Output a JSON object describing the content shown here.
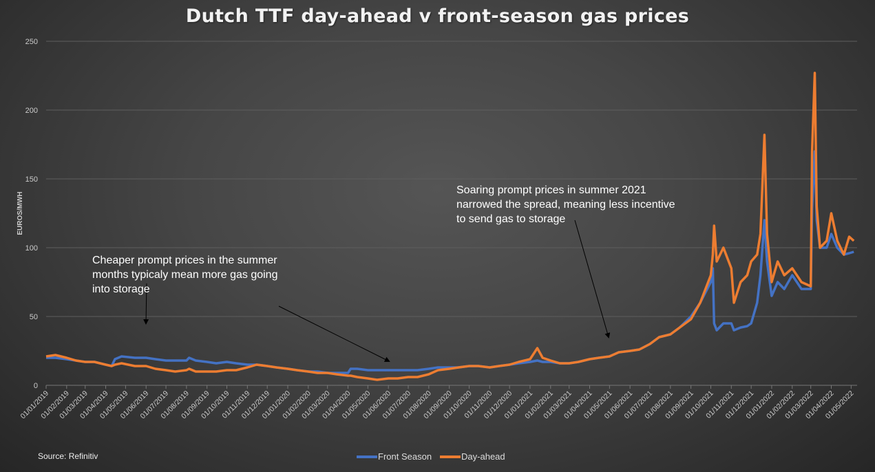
{
  "title": "Dutch TTF day-ahead v front-season gas prices",
  "source": "Source: Refinitiv",
  "annotations": [
    {
      "lines": [
        "Cheaper prompt prices in the summer",
        "months typicaly mean more gas going",
        "into storage"
      ]
    },
    {
      "lines": [
        "Soaring prompt prices in summer 2021",
        "narrowed the spread, meaning less incentive",
        "to send gas to storage"
      ]
    }
  ],
  "chart_data": {
    "type": "line",
    "title": "Dutch TTF day-ahead v front-season gas prices",
    "xlabel": "",
    "ylabel": "EUROS/MWH",
    "ylim": [
      0,
      250
    ],
    "yticks": [
      0,
      50,
      100,
      150,
      200,
      250
    ],
    "xlim": [
      "2019-01-01",
      "2022-05-10"
    ],
    "xtick_labels": [
      "01/01/2019",
      "01/02/2019",
      "01/03/2019",
      "01/04/2019",
      "01/05/2019",
      "01/06/2019",
      "01/07/2019",
      "01/08/2019",
      "01/09/2019",
      "01/10/2019",
      "01/11/2019",
      "01/12/2019",
      "01/01/2020",
      "01/02/2020",
      "01/03/2020",
      "01/04/2020",
      "01/05/2020",
      "01/06/2020",
      "01/07/2020",
      "01/08/2020",
      "01/09/2020",
      "01/10/2020",
      "01/11/2020",
      "01/12/2020",
      "01/01/2021",
      "01/02/2021",
      "01/03/2021",
      "01/04/2021",
      "01/05/2021",
      "01/06/2021",
      "01/07/2021",
      "01/08/2021",
      "01/09/2021",
      "01/10/2021",
      "01/11/2021",
      "01/12/2021",
      "01/01/2022",
      "01/02/2022",
      "01/03/2022",
      "01/04/2022",
      "01/05/2022"
    ],
    "grid": true,
    "legend": "bottom",
    "x": [
      "2019-01-01",
      "2019-01-15",
      "2019-02-01",
      "2019-02-15",
      "2019-03-01",
      "2019-03-15",
      "2019-04-01",
      "2019-04-10",
      "2019-04-15",
      "2019-04-25",
      "2019-05-15",
      "2019-06-01",
      "2019-06-15",
      "2019-07-01",
      "2019-07-15",
      "2019-08-01",
      "2019-08-05",
      "2019-08-15",
      "2019-09-01",
      "2019-09-15",
      "2019-10-01",
      "2019-10-15",
      "2019-11-01",
      "2019-11-15",
      "2019-12-01",
      "2019-12-15",
      "2020-01-01",
      "2020-01-15",
      "2020-02-01",
      "2020-02-15",
      "2020-03-01",
      "2020-03-15",
      "2020-04-01",
      "2020-04-05",
      "2020-04-15",
      "2020-05-01",
      "2020-05-15",
      "2020-06-01",
      "2020-06-15",
      "2020-07-01",
      "2020-07-15",
      "2020-08-01",
      "2020-08-15",
      "2020-09-01",
      "2020-09-15",
      "2020-10-01",
      "2020-10-15",
      "2020-11-01",
      "2020-11-15",
      "2020-12-01",
      "2020-12-15",
      "2021-01-01",
      "2021-01-12",
      "2021-01-20",
      "2021-02-01",
      "2021-02-15",
      "2021-03-01",
      "2021-03-15",
      "2021-04-01",
      "2021-04-15",
      "2021-05-01",
      "2021-05-15",
      "2021-06-01",
      "2021-06-15",
      "2021-07-01",
      "2021-07-15",
      "2021-08-01",
      "2021-08-15",
      "2021-09-01",
      "2021-09-15",
      "2021-10-01",
      "2021-10-04",
      "2021-10-06",
      "2021-10-10",
      "2021-10-20",
      "2021-11-01",
      "2021-11-05",
      "2021-11-15",
      "2021-11-25",
      "2021-12-01",
      "2021-12-10",
      "2021-12-15",
      "2021-12-21",
      "2021-12-25",
      "2022-01-01",
      "2022-01-10",
      "2022-01-20",
      "2022-02-01",
      "2022-02-15",
      "2022-03-01",
      "2022-03-03",
      "2022-03-07",
      "2022-03-10",
      "2022-03-15",
      "2022-03-25",
      "2022-04-01",
      "2022-04-10",
      "2022-04-20",
      "2022-04-28",
      "2022-05-05"
    ],
    "series": [
      {
        "name": "Front Season",
        "color": "#4472c4",
        "values": [
          20,
          20,
          19,
          18,
          17,
          17,
          15,
          14,
          19,
          21,
          20,
          20,
          19,
          18,
          18,
          18,
          20,
          18,
          17,
          16,
          17,
          16,
          15,
          15,
          14,
          13,
          12,
          11,
          10,
          10,
          9,
          9,
          9,
          12,
          12,
          11,
          11,
          11,
          11,
          11,
          11,
          12,
          13,
          13,
          13,
          14,
          14,
          13,
          14,
          15,
          16,
          17,
          18,
          17,
          17,
          16,
          16,
          17,
          19,
          20,
          21,
          24,
          25,
          26,
          30,
          35,
          37,
          42,
          50,
          60,
          75,
          85,
          45,
          40,
          45,
          45,
          40,
          42,
          43,
          45,
          60,
          80,
          120,
          90,
          65,
          75,
          70,
          80,
          70,
          70,
          128,
          170,
          120,
          100,
          100,
          110,
          100,
          95,
          96,
          97
        ]
      },
      {
        "name": "Day-ahead",
        "color": "#ed7d31",
        "values": [
          21,
          22,
          20,
          18,
          17,
          17,
          15,
          14,
          15,
          16,
          14,
          14,
          12,
          11,
          10,
          11,
          12,
          10,
          10,
          10,
          11,
          11,
          13,
          15,
          14,
          13,
          12,
          11,
          10,
          9,
          9,
          8,
          7,
          7,
          6,
          5,
          4,
          5,
          5,
          6,
          6,
          8,
          11,
          12,
          13,
          14,
          14,
          13,
          14,
          15,
          17,
          19,
          27,
          20,
          18,
          16,
          16,
          17,
          19,
          20,
          21,
          24,
          25,
          26,
          30,
          35,
          37,
          42,
          48,
          60,
          80,
          95,
          116,
          90,
          100,
          85,
          60,
          75,
          80,
          90,
          95,
          110,
          182,
          110,
          75,
          90,
          80,
          85,
          75,
          72,
          170,
          227,
          130,
          100,
          105,
          125,
          105,
          95,
          108,
          105
        ]
      }
    ]
  }
}
